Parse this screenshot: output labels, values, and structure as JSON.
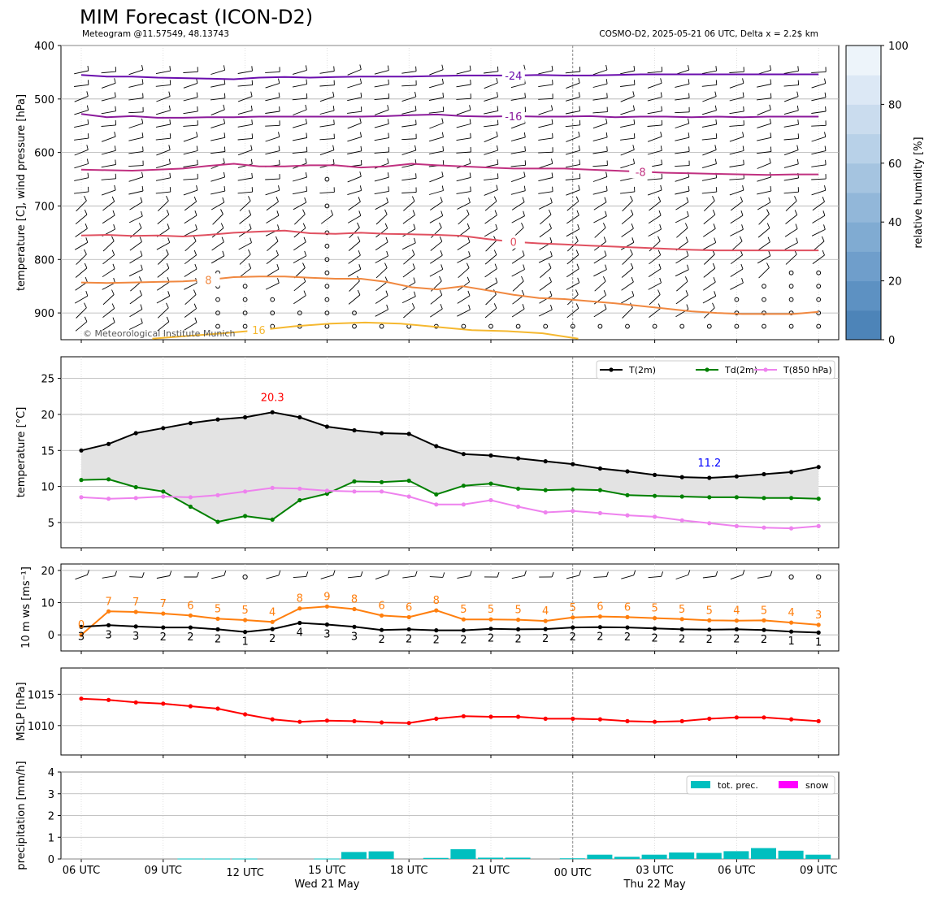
{
  "header": {
    "title": "MIM Forecast (ICON-D2)",
    "location": "Meteogram @11.57549, 48.13743",
    "model_info": "COSMO-D2, 2025-05-21 06 UTC, Delta x = 2.2$ km",
    "copyright": "© Meteorological Institute Munich"
  },
  "time_axis": {
    "tick_labels": [
      "06 UTC",
      "09 UTC",
      "12 UTC",
      "15 UTC",
      "18 UTC",
      "21 UTC",
      "00 UTC",
      "03 UTC",
      "06 UTC",
      "09 UTC"
    ],
    "day_labels": [
      {
        "text": "Wed 21 May",
        "at": "15 UTC"
      },
      {
        "text": "Thu 22 May",
        "at": "03 UTC"
      }
    ]
  },
  "chart_data": [
    {
      "type": "contour",
      "name": "upper-air",
      "ylabel": "temperature [C], wind pressure [hPa]",
      "y_ticks": [
        400,
        500,
        600,
        700,
        800,
        900
      ],
      "ylim": [
        950,
        400
      ],
      "colorbar": {
        "label": "relative humidity [%]",
        "ticks": [
          0,
          20,
          40,
          60,
          80,
          100
        ],
        "colors": [
          "#4d84b8",
          "#5d91c2",
          "#6f9ecb",
          "#80abd2",
          "#92b7d9",
          "#a5c4e0",
          "#b8d1e8",
          "#cadcee",
          "#dce8f5",
          "#edf4fa"
        ]
      },
      "isotherms": [
        {
          "label": "-24",
          "color": "#6a0dad",
          "values": [
            455,
            458,
            458,
            460,
            461,
            462,
            463,
            460,
            459,
            460,
            459,
            458,
            458,
            458,
            457,
            456,
            456,
            456,
            455,
            456,
            456,
            455,
            454,
            454,
            454,
            454,
            454,
            454,
            454,
            454
          ]
        },
        {
          "label": "-16",
          "color": "#8b1a9b",
          "values": [
            528,
            534,
            532,
            535,
            535,
            534,
            534,
            533,
            533,
            533,
            533,
            533,
            532,
            530,
            529,
            532,
            533,
            532,
            533,
            533,
            532,
            534,
            533,
            533,
            534,
            533,
            534,
            533,
            533,
            533
          ]
        },
        {
          "label": "-8",
          "color": "#c03080",
          "values": [
            632,
            633,
            634,
            632,
            630,
            625,
            621,
            626,
            626,
            624,
            624,
            628,
            626,
            621,
            624,
            626,
            628,
            630,
            630,
            630,
            632,
            634,
            636,
            638,
            639,
            640,
            641,
            642,
            641,
            641
          ]
        },
        {
          "label": "0",
          "color": "#e05060",
          "values": [
            755,
            754,
            756,
            755,
            757,
            754,
            750,
            748,
            746,
            751,
            752,
            750,
            752,
            753,
            754,
            756,
            762,
            767,
            770,
            772,
            774,
            776,
            778,
            780,
            782,
            783,
            783,
            783,
            783,
            783
          ]
        },
        {
          "label": "8",
          "color": "#f08840",
          "values": [
            843,
            844,
            843,
            842,
            841,
            838,
            833,
            832,
            832,
            834,
            836,
            836,
            842,
            852,
            856,
            850,
            858,
            866,
            872,
            874,
            878,
            882,
            887,
            892,
            897,
            900,
            902,
            902,
            902,
            898
          ]
        },
        {
          "label": "16",
          "color": "#f5b830",
          "values": [
            955,
            952,
            948,
            943,
            938,
            932,
            925,
            920,
            918,
            920,
            926,
            932,
            934,
            938,
            948,
            955
          ]
        }
      ],
      "calm_wind_markers": [
        {
          "t": 5,
          "levels": [
            825,
            850,
            875,
            900,
            925
          ]
        },
        {
          "t": 6,
          "levels": [
            850,
            875,
            900,
            925
          ]
        },
        {
          "t": 7,
          "levels": [
            875,
            900,
            925
          ]
        },
        {
          "t": 8,
          "levels": [
            900,
            925
          ]
        },
        {
          "t": 9,
          "levels": [
            650,
            700,
            750,
            775,
            800,
            825,
            850,
            875,
            900,
            925
          ]
        },
        {
          "t": 10,
          "levels": [
            900,
            925
          ]
        },
        {
          "t": 11,
          "levels": [
            925
          ]
        },
        {
          "t": 12,
          "levels": [
            925
          ]
        },
        {
          "t": 13,
          "levels": [
            925
          ]
        },
        {
          "t": 14,
          "levels": [
            925
          ]
        },
        {
          "t": 15,
          "levels": [
            925
          ]
        },
        {
          "t": 16,
          "levels": [
            925
          ]
        },
        {
          "t": 17,
          "levels": [
            925
          ]
        },
        {
          "t": 18,
          "levels": [
            925
          ]
        },
        {
          "t": 19,
          "levels": [
            925
          ]
        },
        {
          "t": 20,
          "levels": [
            925
          ]
        },
        {
          "t": 21,
          "levels": [
            925
          ]
        },
        {
          "t": 22,
          "levels": [
            925
          ]
        },
        {
          "t": 23,
          "levels": [
            925
          ]
        },
        {
          "t": 24,
          "levels": [
            875,
            900,
            925
          ]
        },
        {
          "t": 25,
          "levels": [
            850,
            875,
            900,
            925
          ]
        },
        {
          "t": 26,
          "levels": [
            825,
            850,
            875,
            900,
            925
          ]
        },
        {
          "t": 27,
          "levels": [
            825,
            850,
            875,
            900,
            925
          ]
        }
      ]
    },
    {
      "type": "line",
      "name": "temperature",
      "ylabel": "temperature [$^\\circ$C]",
      "y_ticks": [
        5,
        10,
        15,
        20,
        25
      ],
      "ylim": [
        1.5,
        28
      ],
      "series": [
        {
          "name": "T(2m)",
          "color": "#000000",
          "values": [
            15.0,
            15.9,
            17.4,
            18.1,
            18.8,
            19.3,
            19.6,
            20.3,
            19.6,
            18.3,
            17.8,
            17.4,
            17.3,
            15.6,
            14.5,
            14.3,
            13.9,
            13.5,
            13.1,
            12.5,
            12.1,
            11.6,
            11.3,
            11.2,
            11.4,
            11.7,
            12.0,
            12.7
          ]
        },
        {
          "name": "Td(2m)",
          "color": "#008000",
          "values": [
            10.9,
            11.0,
            9.9,
            9.3,
            7.2,
            5.1,
            5.9,
            5.4,
            8.1,
            9.0,
            10.7,
            10.6,
            10.8,
            8.9,
            10.1,
            10.4,
            9.7,
            9.5,
            9.6,
            9.5,
            8.8,
            8.7,
            8.6,
            8.5,
            8.5,
            8.4,
            8.4,
            8.3
          ]
        },
        {
          "name": "T(850 hPa)",
          "color": "#ee82ee",
          "values": [
            8.5,
            8.3,
            8.4,
            8.6,
            8.5,
            8.8,
            9.3,
            9.8,
            9.7,
            9.4,
            9.3,
            9.3,
            8.6,
            7.5,
            7.5,
            8.1,
            7.2,
            6.4,
            6.6,
            6.3,
            6.0,
            5.8,
            5.3,
            4.9,
            4.5,
            4.3,
            4.2,
            4.5
          ]
        }
      ],
      "annotations": [
        {
          "text": "20.3",
          "color": "#ff0000",
          "index": 7,
          "value": 20.3
        },
        {
          "text": "11.2",
          "color": "#0000ff",
          "index": 23,
          "value": 11.2
        }
      ],
      "legend_position": "top-right"
    },
    {
      "type": "line",
      "name": "wind",
      "ylabel": "10 m ws [ms$^{-1}$]",
      "y_ticks": [
        0,
        10,
        20
      ],
      "ylim": [
        -5,
        22
      ],
      "series": [
        {
          "name": "mean",
          "color": "#000000",
          "values": [
            2.5,
            3.0,
            2.6,
            2.3,
            2.3,
            1.7,
            0.9,
            1.8,
            3.7,
            3.2,
            2.5,
            1.5,
            1.7,
            1.4,
            1.4,
            1.9,
            1.7,
            1.8,
            2.3,
            2.4,
            2.3,
            2.0,
            1.7,
            1.6,
            1.7,
            1.5,
            1.0,
            0.7
          ]
        },
        {
          "name": "gust",
          "color": "#ff7f0e",
          "values": [
            0.0,
            7.3,
            7.1,
            6.6,
            6.0,
            5.0,
            4.6,
            4.0,
            8.2,
            8.8,
            8.0,
            6.0,
            5.5,
            7.6,
            4.8,
            4.8,
            4.7,
            4.3,
            5.4,
            5.7,
            5.5,
            5.2,
            4.9,
            4.5,
            4.4,
            4.5,
            3.8,
            3.1
          ]
        }
      ],
      "mean_labels": [
        "3",
        "3",
        "3",
        "2",
        "2",
        "2",
        "1",
        "2",
        "4",
        "3",
        "3",
        "2",
        "2",
        "2",
        "2",
        "2",
        "2",
        "2",
        "2",
        "2",
        "2",
        "2",
        "2",
        "2",
        "2",
        "2",
        "1",
        "1"
      ],
      "gust_labels": [
        "0",
        "7",
        "7",
        "7",
        "6",
        "5",
        "5",
        "4",
        "8",
        "9",
        "8",
        "6",
        "6",
        "8",
        "5",
        "5",
        "5",
        "4",
        "5",
        "6",
        "6",
        "5",
        "5",
        "5",
        "4",
        "5",
        "4",
        "3"
      ],
      "calm_barbs_at": [
        6,
        26,
        27
      ]
    },
    {
      "type": "line",
      "name": "pressure",
      "ylabel": "MSLP [hPa]",
      "y_ticks": [
        1010,
        1015
      ],
      "ylim": [
        1005.3,
        1019.2
      ],
      "series": [
        {
          "name": "MSLP",
          "color": "#ff0000",
          "values": [
            1014.3,
            1014.1,
            1013.7,
            1013.5,
            1013.1,
            1012.7,
            1011.8,
            1011.0,
            1010.6,
            1010.8,
            1010.7,
            1010.5,
            1010.4,
            1011.1,
            1011.5,
            1011.4,
            1011.4,
            1011.1,
            1011.1,
            1011.0,
            1010.7,
            1010.6,
            1010.7,
            1011.1,
            1011.3,
            1011.3,
            1011.0,
            1010.7
          ]
        }
      ]
    },
    {
      "type": "bar",
      "name": "precipitation",
      "ylabel": "precipitation [mm/h]",
      "y_ticks": [
        0,
        1,
        2,
        3,
        4
      ],
      "ylim": [
        0,
        4
      ],
      "series": [
        {
          "name": "tot. prec.",
          "color": "#00bfbf",
          "values": [
            0,
            0,
            0,
            0,
            0.02,
            0.02,
            0.02,
            0,
            0,
            0.02,
            0.32,
            0.35,
            0,
            0.05,
            0.45,
            0.06,
            0.06,
            0,
            0.03,
            0.2,
            0.1,
            0.2,
            0.3,
            0.28,
            0.36,
            0.5,
            0.38,
            0.2
          ]
        },
        {
          "name": "snow",
          "color": "#ff00ff",
          "values": [
            0,
            0,
            0,
            0,
            0,
            0,
            0,
            0,
            0,
            0,
            0,
            0,
            0,
            0,
            0,
            0,
            0,
            0,
            0,
            0,
            0,
            0,
            0,
            0,
            0,
            0,
            0,
            0
          ]
        }
      ],
      "legend_position": "top-right"
    }
  ]
}
